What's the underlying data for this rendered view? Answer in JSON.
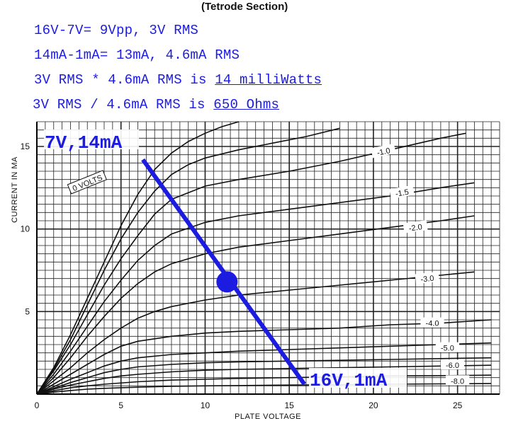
{
  "header": {
    "title": "(Tetrode Section)"
  },
  "notes": {
    "line1": "16V-7V= 9Vpp, 3V RMS",
    "line2": "14mA-1mA= 13mA, 4.6mA RMS",
    "line3_pre": "3V RMS * 4.6mA RMS is ",
    "line3_value": "14 milliWatts",
    "line4_pre": "3V RMS / 4.6mA RMS is ",
    "line4_value": "650 Ohms"
  },
  "colors": {
    "annotation": "#1c1ce0",
    "curves": "#111111",
    "grid": "#222222"
  },
  "chart_data": {
    "type": "line",
    "xlabel": "PLATE VOLTAGE",
    "ylabel": "CURRENT IN MA",
    "xlim": [
      0,
      27.5
    ],
    "ylim": [
      0,
      16.5
    ],
    "x_ticks": [
      "0",
      "5",
      "10",
      "15",
      "20",
      "25"
    ],
    "y_ticks": [
      "5",
      "10",
      "15"
    ],
    "grid": true,
    "curve_labels": [
      "0 VOLTS",
      "-1.0",
      "-1.5",
      "-2.0",
      "-3.0",
      "-4.0",
      "-5.0",
      "-6.0",
      "-8.0"
    ],
    "series": [
      {
        "name": "0 VOLTS",
        "x": [
          0,
          1,
          2,
          3,
          4,
          5,
          6,
          7,
          8,
          9,
          10,
          11,
          12
        ],
        "y": [
          0,
          1.6,
          3.6,
          5.8,
          8.0,
          10.2,
          12.1,
          13.6,
          14.6,
          15.3,
          15.8,
          16.2,
          16.5
        ]
      },
      {
        "name": "",
        "x": [
          0,
          1,
          2,
          3,
          4,
          5,
          6,
          7,
          8,
          9,
          10,
          12,
          14,
          16,
          18
        ],
        "y": [
          0,
          1.5,
          3.3,
          5.4,
          7.5,
          9.4,
          11.0,
          12.3,
          13.3,
          13.9,
          14.3,
          14.8,
          15.2,
          15.6,
          16.1
        ]
      },
      {
        "name": "-1.0",
        "x": [
          0,
          1,
          2,
          3,
          4,
          5,
          6,
          7,
          8,
          10,
          12,
          15,
          18,
          21,
          24,
          25.5
        ],
        "y": [
          0,
          1.4,
          3.0,
          4.8,
          6.6,
          8.2,
          9.6,
          10.9,
          11.8,
          12.6,
          13.0,
          13.5,
          14.1,
          14.8,
          15.5,
          15.8
        ]
      },
      {
        "name": "-1.5",
        "x": [
          0,
          1,
          2,
          3,
          4,
          5,
          6,
          7,
          8,
          10,
          12,
          15,
          18,
          21,
          24,
          26
        ],
        "y": [
          0,
          1.2,
          2.6,
          4.1,
          5.6,
          6.9,
          8.1,
          9.0,
          9.7,
          10.4,
          10.8,
          11.2,
          11.6,
          12.0,
          12.5,
          12.8
        ]
      },
      {
        "name": "-2.0",
        "x": [
          0,
          1,
          2,
          3,
          4,
          5,
          6,
          7,
          8,
          10,
          12,
          15,
          18,
          21,
          24,
          26
        ],
        "y": [
          0,
          1.0,
          2.2,
          3.5,
          4.7,
          5.8,
          6.7,
          7.4,
          7.9,
          8.5,
          8.9,
          9.3,
          9.7,
          10.1,
          10.5,
          10.8
        ]
      },
      {
        "name": "-3.0",
        "x": [
          0,
          1,
          2,
          3,
          4,
          5,
          6,
          7,
          8,
          10,
          12,
          15,
          18,
          21,
          24,
          26
        ],
        "y": [
          0,
          0.8,
          1.6,
          2.5,
          3.3,
          4.0,
          4.6,
          5.0,
          5.3,
          5.7,
          6.0,
          6.3,
          6.6,
          6.9,
          7.2,
          7.4
        ]
      },
      {
        "name": "-4.0",
        "x": [
          0,
          1,
          2,
          3,
          4,
          5,
          6,
          8,
          10,
          12,
          15,
          18,
          21,
          24,
          27
        ],
        "y": [
          0,
          0.6,
          1.2,
          1.8,
          2.4,
          2.9,
          3.2,
          3.5,
          3.7,
          3.8,
          3.9,
          4.0,
          4.2,
          4.3,
          4.5
        ]
      },
      {
        "name": "-5.0",
        "x": [
          0,
          1,
          2,
          3,
          4,
          5,
          6,
          8,
          10,
          12,
          15,
          18,
          21,
          24,
          27
        ],
        "y": [
          0,
          0.45,
          0.9,
          1.3,
          1.7,
          2.0,
          2.2,
          2.4,
          2.5,
          2.6,
          2.7,
          2.8,
          2.9,
          3.0,
          3.1
        ]
      },
      {
        "name": "",
        "x": [
          0,
          1,
          2,
          3,
          4,
          5,
          6,
          8,
          10,
          12,
          15,
          18,
          21,
          24,
          27
        ],
        "y": [
          0,
          0.35,
          0.7,
          1.0,
          1.3,
          1.5,
          1.65,
          1.8,
          1.9,
          1.95,
          2.0,
          2.05,
          2.1,
          2.15,
          2.2
        ]
      },
      {
        "name": "-6.0",
        "x": [
          0,
          1,
          2,
          3,
          4,
          5,
          6,
          8,
          10,
          12,
          15,
          18,
          21,
          24,
          27
        ],
        "y": [
          0,
          0.3,
          0.55,
          0.75,
          0.95,
          1.1,
          1.2,
          1.35,
          1.45,
          1.5,
          1.55,
          1.6,
          1.65,
          1.7,
          1.75
        ]
      },
      {
        "name": "",
        "x": [
          0,
          1,
          2,
          3,
          4,
          6,
          8,
          10,
          12,
          15,
          18,
          21,
          24,
          27
        ],
        "y": [
          0,
          0.2,
          0.38,
          0.5,
          0.6,
          0.75,
          0.85,
          0.9,
          0.95,
          1.0,
          1.05,
          1.1,
          1.12,
          1.15
        ]
      },
      {
        "name": "-8.0",
        "x": [
          0,
          1,
          2,
          3,
          4,
          6,
          8,
          10,
          12,
          15,
          18,
          21,
          24,
          27
        ],
        "y": [
          0,
          0.12,
          0.22,
          0.3,
          0.35,
          0.42,
          0.47,
          0.5,
          0.52,
          0.55,
          0.57,
          0.6,
          0.62,
          0.64
        ]
      }
    ],
    "load_line": {
      "x": [
        6.3,
        15.9
      ],
      "y": [
        14.2,
        0.6
      ]
    },
    "operating_point": {
      "x": 11.3,
      "y": 6.8
    },
    "annotations": {
      "top": "7V,14mA",
      "bottom": "16V,1mA"
    }
  }
}
